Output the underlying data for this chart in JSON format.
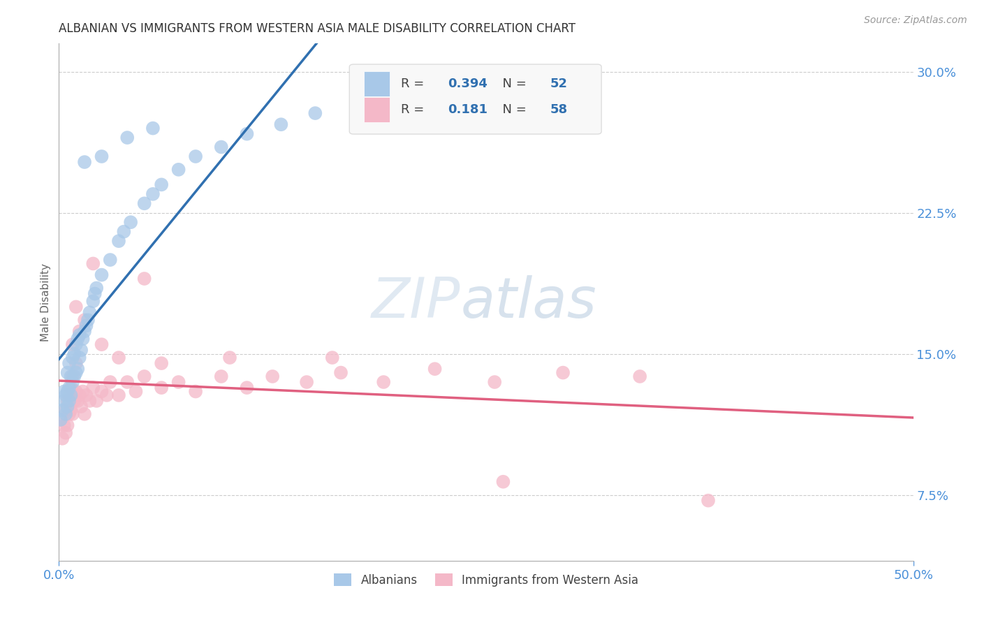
{
  "title": "ALBANIAN VS IMMIGRANTS FROM WESTERN ASIA MALE DISABILITY CORRELATION CHART",
  "source": "Source: ZipAtlas.com",
  "ylabel": "Male Disability",
  "xlim": [
    0.0,
    0.5
  ],
  "ylim": [
    0.04,
    0.315
  ],
  "xtick_vals": [
    0.0,
    0.5
  ],
  "xticklabels": [
    "0.0%",
    "50.0%"
  ],
  "ytick_vals": [
    0.075,
    0.15,
    0.225,
    0.3
  ],
  "yticklabels_right": [
    "7.5%",
    "15.0%",
    "22.5%",
    "30.0%"
  ],
  "legend1_R": "0.394",
  "legend1_N": "52",
  "legend2_R": "0.181",
  "legend2_N": "58",
  "blue_color": "#a8c8e8",
  "pink_color": "#f4b8c8",
  "blue_line_color": "#3070b0",
  "pink_line_color": "#e06080",
  "blue_dashed_color": "#90b8d8",
  "watermark_text": "ZIPatlas",
  "blue_x": [
    0.001,
    0.002,
    0.003,
    0.003,
    0.004,
    0.004,
    0.005,
    0.005,
    0.005,
    0.006,
    0.006,
    0.006,
    0.007,
    0.007,
    0.008,
    0.008,
    0.009,
    0.009,
    0.01,
    0.01,
    0.011,
    0.011,
    0.012,
    0.012,
    0.013,
    0.014,
    0.015,
    0.016,
    0.017,
    0.018,
    0.02,
    0.021,
    0.022,
    0.025,
    0.03,
    0.035,
    0.038,
    0.042,
    0.05,
    0.055,
    0.06,
    0.07,
    0.08,
    0.095,
    0.11,
    0.13,
    0.15,
    0.18,
    0.055,
    0.04,
    0.025,
    0.015
  ],
  "blue_y": [
    0.115,
    0.12,
    0.125,
    0.13,
    0.118,
    0.128,
    0.122,
    0.13,
    0.14,
    0.125,
    0.132,
    0.145,
    0.128,
    0.138,
    0.135,
    0.148,
    0.138,
    0.15,
    0.14,
    0.155,
    0.142,
    0.158,
    0.148,
    0.16,
    0.152,
    0.158,
    0.162,
    0.165,
    0.168,
    0.172,
    0.178,
    0.182,
    0.185,
    0.192,
    0.2,
    0.21,
    0.215,
    0.22,
    0.23,
    0.235,
    0.24,
    0.248,
    0.255,
    0.26,
    0.267,
    0.272,
    0.278,
    0.284,
    0.27,
    0.265,
    0.255,
    0.252
  ],
  "pink_x": [
    0.001,
    0.002,
    0.003,
    0.004,
    0.004,
    0.005,
    0.005,
    0.006,
    0.006,
    0.007,
    0.007,
    0.008,
    0.008,
    0.009,
    0.01,
    0.01,
    0.011,
    0.012,
    0.013,
    0.014,
    0.015,
    0.016,
    0.018,
    0.02,
    0.022,
    0.025,
    0.028,
    0.03,
    0.035,
    0.04,
    0.045,
    0.05,
    0.06,
    0.07,
    0.08,
    0.095,
    0.11,
    0.125,
    0.145,
    0.165,
    0.19,
    0.22,
    0.255,
    0.295,
    0.34,
    0.05,
    0.02,
    0.01,
    0.015,
    0.008,
    0.012,
    0.025,
    0.035,
    0.06,
    0.1,
    0.16,
    0.26,
    0.38
  ],
  "pink_y": [
    0.115,
    0.105,
    0.112,
    0.108,
    0.12,
    0.112,
    0.125,
    0.118,
    0.128,
    0.12,
    0.132,
    0.118,
    0.138,
    0.125,
    0.13,
    0.145,
    0.125,
    0.128,
    0.122,
    0.13,
    0.118,
    0.128,
    0.125,
    0.132,
    0.125,
    0.13,
    0.128,
    0.135,
    0.128,
    0.135,
    0.13,
    0.138,
    0.132,
    0.135,
    0.13,
    0.138,
    0.132,
    0.138,
    0.135,
    0.14,
    0.135,
    0.142,
    0.135,
    0.14,
    0.138,
    0.19,
    0.198,
    0.175,
    0.168,
    0.155,
    0.162,
    0.155,
    0.148,
    0.145,
    0.148,
    0.148,
    0.082,
    0.072
  ]
}
